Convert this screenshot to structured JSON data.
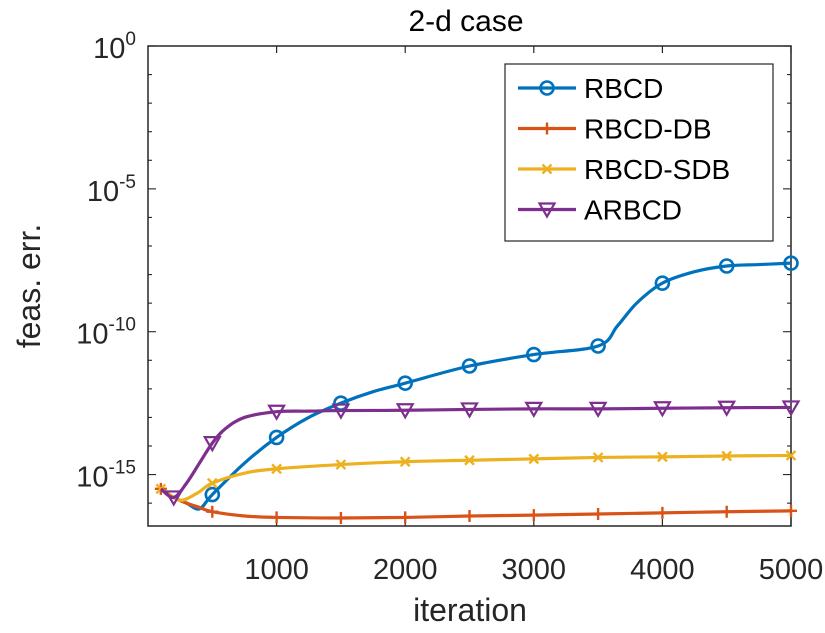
{
  "chart_data": {
    "type": "line",
    "title": "2-d case",
    "xlabel": "iteration",
    "ylabel": "feas. err.",
    "xlim": [
      0,
      5000
    ],
    "ylim_log10": [
      -16.8,
      0
    ],
    "yscale": "log",
    "grid": false,
    "legend_position": "top-right",
    "x_ticks": [
      "1000",
      "2000",
      "3000",
      "4000",
      "5000"
    ],
    "x_tick_values": [
      1000,
      2000,
      3000,
      4000,
      5000
    ],
    "y_ticks": [
      {
        "base": "10",
        "exp": "0",
        "value": 0
      },
      {
        "base": "10",
        "exp": "-5",
        "value": -5
      },
      {
        "base": "10",
        "exp": "-10",
        "value": -10
      },
      {
        "base": "10",
        "exp": "-15",
        "value": -15
      }
    ],
    "series": [
      {
        "name": "RBCD",
        "color": "#0072BD",
        "marker": "circle",
        "x": [
          100,
          200,
          300,
          400,
          500,
          750,
          1000,
          1250,
          1500,
          1750,
          2000,
          2500,
          3000,
          3500,
          3650,
          3800,
          4000,
          4250,
          4500,
          4750,
          5000
        ],
        "log10_y": [
          -15.5,
          -15.8,
          -16.0,
          -16.2,
          -15.7,
          -14.6,
          -13.7,
          -13.0,
          -12.5,
          -12.1,
          -11.8,
          -11.2,
          -10.8,
          -10.5,
          -9.8,
          -9.0,
          -8.3,
          -7.9,
          -7.7,
          -7.65,
          -7.6
        ],
        "markers_x": [
          500,
          1000,
          1500,
          2000,
          2500,
          3000,
          3500,
          4000,
          4500,
          5000
        ]
      },
      {
        "name": "RBCD-DB",
        "color": "#D95319",
        "marker": "plus",
        "x": [
          100,
          200,
          300,
          400,
          500,
          750,
          1000,
          1500,
          2000,
          2500,
          3000,
          3500,
          4000,
          4500,
          5000
        ],
        "log10_y": [
          -15.5,
          -15.8,
          -16.0,
          -16.15,
          -16.3,
          -16.45,
          -16.5,
          -16.52,
          -16.5,
          -16.45,
          -16.42,
          -16.38,
          -16.34,
          -16.3,
          -16.27
        ],
        "markers_x": [
          100,
          500,
          1000,
          1500,
          2000,
          2500,
          3000,
          3500,
          4000,
          4500,
          5000
        ]
      },
      {
        "name": "RBCD-SDB",
        "color": "#EDB120",
        "marker": "x",
        "x": [
          100,
          200,
          250,
          300,
          400,
          500,
          750,
          1000,
          1500,
          2000,
          2500,
          3000,
          3500,
          4000,
          4500,
          5000
        ],
        "log10_y": [
          -15.5,
          -15.8,
          -15.9,
          -15.85,
          -15.6,
          -15.3,
          -14.95,
          -14.8,
          -14.65,
          -14.55,
          -14.5,
          -14.45,
          -14.4,
          -14.38,
          -14.35,
          -14.33
        ],
        "markers_x": [
          100,
          500,
          1000,
          1500,
          2000,
          2500,
          3000,
          3500,
          4000,
          4500,
          5000
        ]
      },
      {
        "name": "ARBCD",
        "color": "#7E2F8E",
        "marker": "triangle-down",
        "x": [
          100,
          200,
          300,
          400,
          500,
          600,
          750,
          1000,
          1250,
          1500,
          2000,
          2500,
          3000,
          3500,
          4000,
          4500,
          5000
        ],
        "log10_y": [
          -15.5,
          -15.8,
          -15.3,
          -14.6,
          -13.9,
          -13.4,
          -13.0,
          -12.8,
          -12.78,
          -12.76,
          -12.75,
          -12.72,
          -12.7,
          -12.7,
          -12.68,
          -12.66,
          -12.65
        ],
        "markers_x": [
          200,
          500,
          1000,
          1500,
          2000,
          2500,
          3000,
          3500,
          4000,
          4500,
          5000
        ]
      }
    ]
  }
}
